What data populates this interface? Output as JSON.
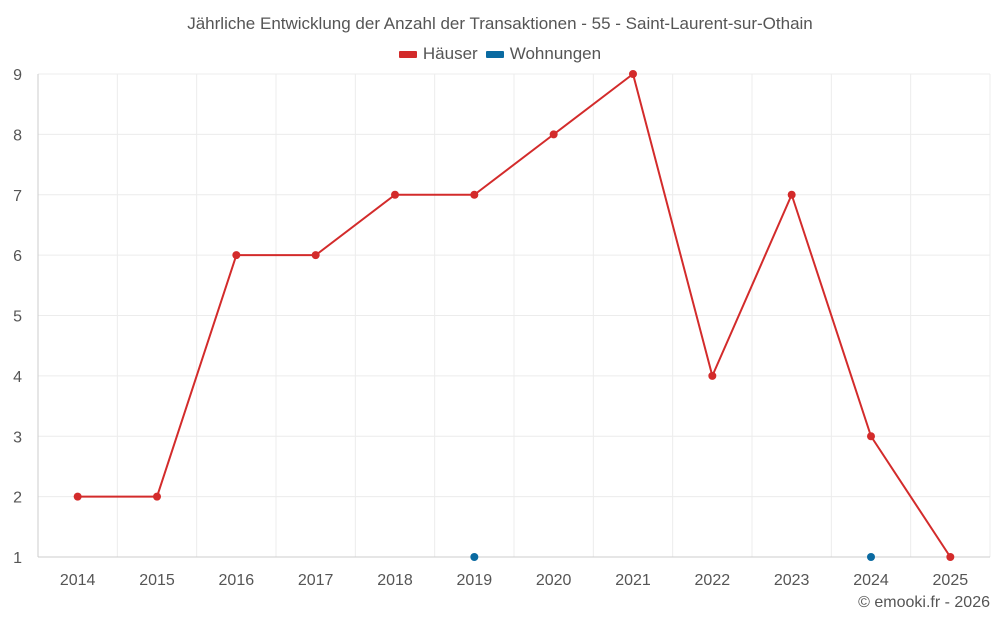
{
  "chart_data": {
    "type": "line",
    "title": "Jährliche Entwicklung der Anzahl der Transaktionen - 55 - Saint-Laurent-sur-Othain",
    "categories": [
      "2014",
      "2015",
      "2016",
      "2017",
      "2018",
      "2019",
      "2020",
      "2021",
      "2022",
      "2023",
      "2024",
      "2025"
    ],
    "series": [
      {
        "name": "Häuser",
        "color": "#d32b2b",
        "values": [
          2,
          2,
          6,
          6,
          7,
          7,
          8,
          9,
          4,
          7,
          3,
          1
        ]
      },
      {
        "name": "Wohnungen",
        "color": "#0a6aa1",
        "values": [
          null,
          null,
          null,
          null,
          null,
          1,
          null,
          null,
          null,
          null,
          1,
          null
        ]
      }
    ],
    "ylim": [
      1,
      9
    ],
    "yticks": [
      1,
      2,
      3,
      4,
      5,
      6,
      7,
      8,
      9
    ],
    "grid": true,
    "legend_position": "top-center",
    "xlabel": "",
    "ylabel": ""
  },
  "credit": "© emooki.fr - 2026"
}
